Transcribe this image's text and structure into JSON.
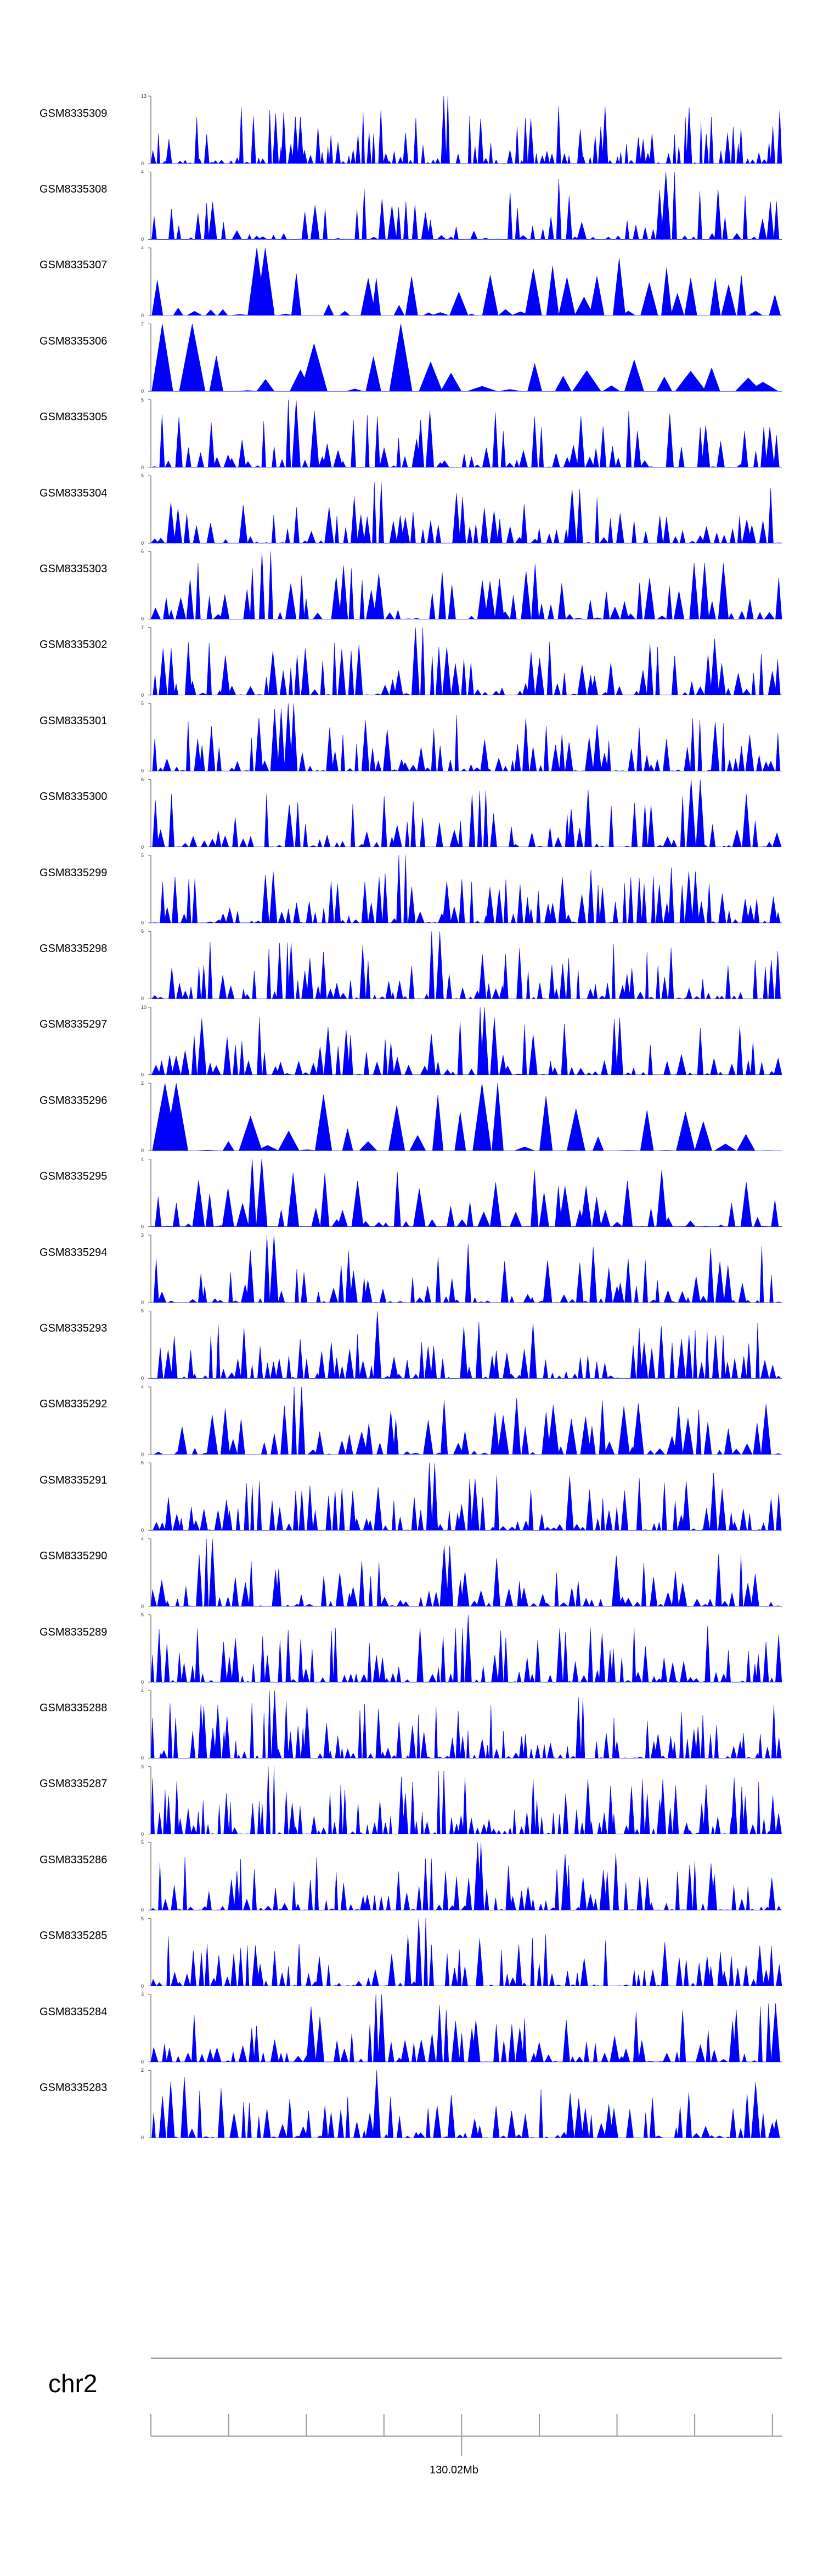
{
  "chart_data": {
    "type": "area",
    "title": "",
    "track_color": "#0000ff",
    "chromosome": "chr2",
    "position_label": "130.02Mb",
    "x_ticks": 9,
    "tracks": [
      {
        "name": "GSM8335309",
        "ymax": 13,
        "ymin": 0,
        "seed": 101,
        "peaks": 120,
        "big": [
          [
            0.47,
            13
          ],
          [
            0.23,
            9
          ]
        ]
      },
      {
        "name": "GSM8335308",
        "ymax": 4,
        "ymin": 0,
        "seed": 202,
        "peaks": 75,
        "big": [
          [
            0.82,
            4
          ],
          [
            0.65,
            3.6
          ]
        ]
      },
      {
        "name": "GSM8335307",
        "ymax": 4,
        "ymin": 0,
        "seed": 303,
        "peaks": 40,
        "big": [
          [
            0.18,
            4
          ],
          [
            0.35,
            2.2
          ]
        ]
      },
      {
        "name": "GSM8335306",
        "ymax": 2,
        "ymin": 0,
        "seed": 404,
        "peaks": 24,
        "big": [
          [
            0.04,
            2
          ],
          [
            0.4,
            2
          ]
        ]
      },
      {
        "name": "GSM8335305",
        "ymax": 5,
        "ymin": 0,
        "seed": 505,
        "peaks": 80,
        "big": [
          [
            0.22,
            5
          ],
          [
            0.98,
            3
          ]
        ]
      },
      {
        "name": "GSM8335304",
        "ymax": 5,
        "ymin": 0,
        "seed": 606,
        "peaks": 80,
        "big": [
          [
            0.36,
            4.5
          ],
          [
            0.67,
            4
          ]
        ]
      },
      {
        "name": "GSM8335303",
        "ymax": 6,
        "ymin": 0,
        "seed": 707,
        "peaks": 70,
        "big": [
          [
            0.18,
            6
          ],
          [
            0.87,
            5
          ]
        ]
      },
      {
        "name": "GSM8335302",
        "ymax": 7,
        "ymin": 0,
        "seed": 808,
        "peaks": 80,
        "big": [
          [
            0.43,
            7
          ],
          [
            0.46,
            5
          ]
        ]
      },
      {
        "name": "GSM8335301",
        "ymax": 5,
        "ymin": 0,
        "seed": 909,
        "peaks": 90,
        "big": [
          [
            0.22,
            5
          ],
          [
            0.2,
            4.6
          ]
        ]
      },
      {
        "name": "GSM8335300",
        "ymax": 6,
        "ymin": 0,
        "seed": 1010,
        "peaks": 80,
        "big": [
          [
            0.86,
            6
          ],
          [
            0.53,
            5
          ]
        ]
      },
      {
        "name": "GSM8335299",
        "ymax": 5,
        "ymin": 0,
        "seed": 1111,
        "peaks": 90,
        "big": [
          [
            0.4,
            5
          ],
          [
            0.86,
            3.8
          ]
        ]
      },
      {
        "name": "GSM8335298",
        "ymax": 6,
        "ymin": 0,
        "seed": 1212,
        "peaks": 100,
        "big": [
          [
            0.45,
            6
          ],
          [
            0.22,
            5
          ]
        ]
      },
      {
        "name": "GSM8335297",
        "ymax": 10,
        "ymin": 0,
        "seed": 1313,
        "peaks": 80,
        "big": [
          [
            0.53,
            10
          ],
          [
            0.61,
            6
          ]
        ]
      },
      {
        "name": "GSM8335296",
        "ymax": 2,
        "ymin": 0,
        "seed": 1414,
        "peaks": 30,
        "big": [
          [
            0.03,
            2
          ],
          [
            0.54,
            2
          ]
        ]
      },
      {
        "name": "GSM8335295",
        "ymax": 4,
        "ymin": 0,
        "seed": 1515,
        "peaks": 60,
        "big": [
          [
            0.17,
            4
          ],
          [
            0.65,
            2.4
          ]
        ]
      },
      {
        "name": "GSM8335294",
        "ymax": 3,
        "ymin": 0,
        "seed": 1616,
        "peaks": 85,
        "big": [
          [
            0.19,
            3
          ],
          [
            0.5,
            2.6
          ]
        ]
      },
      {
        "name": "GSM8335293",
        "ymax": 5,
        "ymin": 0,
        "seed": 1717,
        "peaks": 90,
        "big": [
          [
            0.36,
            5
          ],
          [
            0.9,
            3.2
          ]
        ]
      },
      {
        "name": "GSM8335292",
        "ymax": 4,
        "ymin": 0,
        "seed": 1818,
        "peaks": 65,
        "big": [
          [
            0.23,
            4
          ],
          [
            0.98,
            3
          ]
        ]
      },
      {
        "name": "GSM8335291",
        "ymax": 6,
        "ymin": 0,
        "seed": 1919,
        "peaks": 90,
        "big": [
          [
            0.44,
            6
          ],
          [
            0.23,
            3.5
          ]
        ]
      },
      {
        "name": "GSM8335290",
        "ymax": 4,
        "ymin": 0,
        "seed": 2020,
        "peaks": 85,
        "big": [
          [
            0.09,
            4
          ],
          [
            0.47,
            3.6
          ]
        ]
      },
      {
        "name": "GSM8335289",
        "ymax": 5,
        "ymin": 0,
        "seed": 2121,
        "peaks": 100,
        "big": [
          [
            0.5,
            5
          ],
          [
            0.49,
            4
          ]
        ]
      },
      {
        "name": "GSM8335288",
        "ymax": 4,
        "ymin": 0,
        "seed": 2222,
        "peaks": 110,
        "big": [
          [
            0.19,
            4
          ],
          [
            0.68,
            3.6
          ]
        ]
      },
      {
        "name": "GSM8335287",
        "ymax": 3,
        "ymin": 0,
        "seed": 2323,
        "peaks": 115,
        "big": [
          [
            0.19,
            3
          ],
          [
            0.46,
            2.8
          ]
        ]
      },
      {
        "name": "GSM8335286",
        "ymax": 5,
        "ymin": 0,
        "seed": 2424,
        "peaks": 100,
        "big": [
          [
            0.52,
            5
          ],
          [
            0.44,
            3.8
          ]
        ]
      },
      {
        "name": "GSM8335285",
        "ymax": 5,
        "ymin": 0,
        "seed": 2525,
        "peaks": 95,
        "big": [
          [
            0.43,
            5
          ],
          [
            0.16,
            3
          ]
        ]
      },
      {
        "name": "GSM8335284",
        "ymax": 3,
        "ymin": 0,
        "seed": 2626,
        "peaks": 80,
        "big": [
          [
            0.36,
            3
          ],
          [
            0.99,
            2.6
          ]
        ]
      },
      {
        "name": "GSM8335283",
        "ymax": 2,
        "ymin": 0,
        "seed": 2727,
        "peaks": 85,
        "big": [
          [
            0.36,
            2
          ],
          [
            0.05,
            1.8
          ]
        ]
      }
    ]
  }
}
